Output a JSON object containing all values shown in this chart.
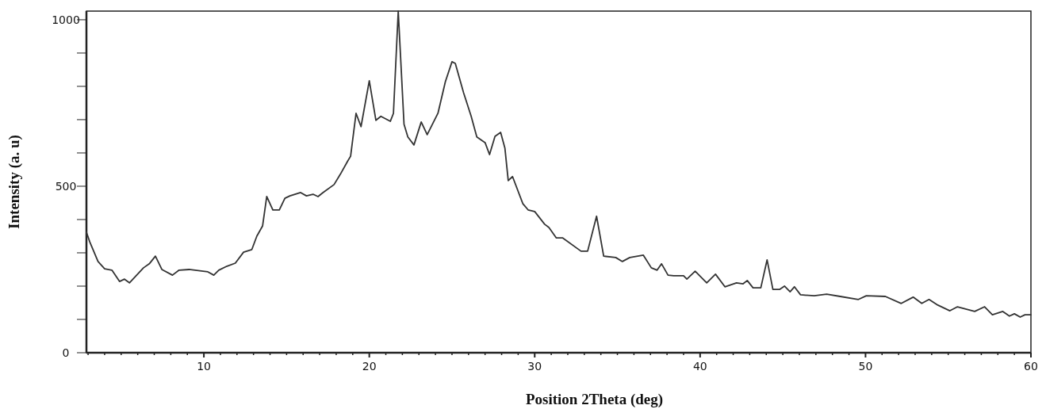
{
  "chart_data": {
    "type": "line",
    "xlabel": "Position 2Theta (deg)",
    "ylabel": "Intensity (a. u)",
    "xlim": [
      2.9,
      60
    ],
    "ylim": [
      0,
      1026
    ],
    "xticks": [
      {
        "value": 3,
        "label": null
      },
      {
        "value": 4,
        "label": null
      },
      {
        "value": 5,
        "label": null
      },
      {
        "value": 6,
        "label": null
      },
      {
        "value": 7,
        "label": null
      },
      {
        "value": 8,
        "label": null
      },
      {
        "value": 9,
        "label": null
      },
      10,
      {
        "value": 11,
        "label": null
      },
      {
        "value": 12,
        "label": null
      },
      {
        "value": 13,
        "label": null
      },
      {
        "value": 14,
        "label": null
      },
      {
        "value": 15,
        "label": null
      },
      {
        "value": 16,
        "label": null
      },
      {
        "value": 17,
        "label": null
      },
      {
        "value": 18,
        "label": null
      },
      {
        "value": 19,
        "label": null
      },
      20,
      {
        "value": 21,
        "label": null
      },
      {
        "value": 22,
        "label": null
      },
      {
        "value": 23,
        "label": null
      },
      {
        "value": 24,
        "label": null
      },
      {
        "value": 25,
        "label": null
      },
      {
        "value": 26,
        "label": null
      },
      {
        "value": 27,
        "label": null
      },
      {
        "value": 28,
        "label": null
      },
      {
        "value": 29,
        "label": null
      },
      30,
      {
        "value": 31,
        "label": null
      },
      {
        "value": 32,
        "label": null
      },
      {
        "value": 33,
        "label": null
      },
      {
        "value": 34,
        "label": null
      },
      {
        "value": 35,
        "label": null
      },
      {
        "value": 36,
        "label": null
      },
      {
        "value": 37,
        "label": null
      },
      {
        "value": 38,
        "label": null
      },
      {
        "value": 39,
        "label": null
      },
      40,
      {
        "value": 41,
        "label": null
      },
      {
        "value": 42,
        "label": null
      },
      {
        "value": 43,
        "label": null
      },
      {
        "value": 44,
        "label": null
      },
      {
        "value": 45,
        "label": null
      },
      {
        "value": 46,
        "label": null
      },
      {
        "value": 47,
        "label": null
      },
      {
        "value": 48,
        "label": null
      },
      {
        "value": 49,
        "label": null
      },
      50,
      {
        "value": 51,
        "label": null
      },
      {
        "value": 52,
        "label": null
      },
      {
        "value": 53,
        "label": null
      },
      {
        "value": 54,
        "label": null
      },
      {
        "value": 55,
        "label": null
      },
      {
        "value": 56,
        "label": null
      },
      {
        "value": 57,
        "label": null
      },
      {
        "value": 58,
        "label": null
      },
      {
        "value": 59,
        "label": null
      },
      60
    ],
    "yticks": [
      0,
      {
        "value": 100,
        "label": null
      },
      {
        "value": 200,
        "label": null
      },
      {
        "value": 300,
        "label": null
      },
      {
        "value": 400,
        "label": null
      },
      500,
      {
        "value": 600,
        "label": null
      },
      {
        "value": 700,
        "label": null
      },
      {
        "value": 800,
        "label": null
      },
      {
        "value": 900,
        "label": null
      },
      1000
    ],
    "grid": false,
    "marker": "none",
    "line_style": "solid",
    "series": [
      {
        "color": "#333333",
        "x": [
          2.9,
          3.1,
          3.6,
          4.0,
          4.44,
          4.9,
          5.2,
          5.5,
          6.35,
          6.7,
          7.07,
          7.46,
          8.1,
          8.5,
          9.1,
          10.24,
          10.6,
          10.9,
          11.4,
          11.9,
          12.4,
          12.9,
          13.2,
          13.55,
          13.8,
          14.17,
          14.56,
          14.9,
          15.2,
          15.85,
          16.2,
          16.6,
          16.9,
          17.2,
          17.87,
          18.25,
          18.7,
          18.87,
          19.2,
          19.5,
          20.0,
          20.4,
          20.7,
          21.27,
          21.46,
          21.75,
          22.1,
          22.33,
          22.7,
          23.14,
          23.5,
          24.15,
          24.6,
          25.0,
          25.2,
          25.7,
          26.16,
          26.5,
          27.0,
          27.27,
          27.6,
          27.94,
          28.2,
          28.4,
          28.66,
          29.28,
          29.6,
          30.0,
          30.6,
          30.86,
          31.3,
          31.68,
          32.8,
          33.2,
          33.74,
          34.17,
          34.9,
          35.3,
          35.75,
          36.57,
          37.05,
          37.4,
          37.67,
          38.06,
          38.4,
          39.0,
          39.2,
          39.7,
          40.4,
          40.93,
          41.5,
          42.2,
          42.6,
          42.85,
          43.2,
          43.67,
          44.05,
          44.4,
          44.8,
          45.1,
          45.44,
          45.7,
          46.07,
          46.9,
          47.65,
          48.47,
          49.57,
          50.05,
          51.2,
          52.16,
          52.88,
          53.4,
          53.84,
          54.37,
          55.1,
          55.56,
          56.6,
          57.2,
          57.67,
          58.3,
          58.7,
          59.0,
          59.35,
          59.64,
          60
        ],
        "values": [
          362,
          333,
          274,
          252,
          248,
          214,
          221,
          210,
          255,
          267,
          290,
          250,
          233,
          248,
          250,
          243,
          233,
          248,
          260,
          269,
          302,
          310,
          350,
          381,
          469,
          429,
          429,
          464,
          471,
          481,
          471,
          476,
          469,
          481,
          505,
          536,
          576,
          590,
          719,
          679,
          817,
          698,
          710,
          695,
          719,
          1026,
          686,
          648,
          624,
          693,
          655,
          719,
          814,
          874,
          869,
          781,
          710,
          648,
          631,
          595,
          650,
          662,
          614,
          517,
          529,
          448,
          429,
          424,
          386,
          376,
          345,
          345,
          305,
          305,
          410,
          290,
          286,
          274,
          286,
          293,
          255,
          248,
          267,
          233,
          231,
          231,
          221,
          245,
          210,
          236,
          198,
          210,
          207,
          217,
          195,
          195,
          279,
          190,
          190,
          200,
          183,
          198,
          174,
          171,
          176,
          169,
          160,
          171,
          169,
          148,
          167,
          148,
          160,
          143,
          126,
          138,
          124,
          138,
          114,
          124,
          110,
          117,
          107,
          114,
          114
        ]
      }
    ]
  }
}
